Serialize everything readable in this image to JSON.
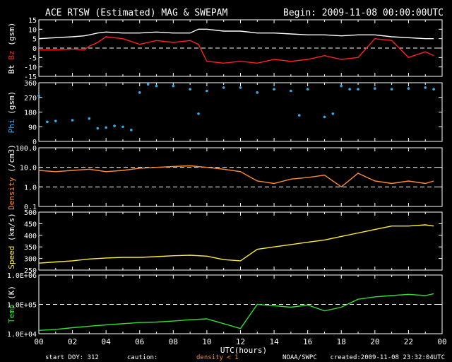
{
  "header": {
    "title": "ACE RTSW (Estimated) MAG & SWEPAM",
    "begin": "Begin: 2009-11-08 00:00:00UTC"
  },
  "footer": {
    "start_doy": "start DOY: 312",
    "caution": "caution:",
    "density_note": "density < 1",
    "source": "NOAA/SWPC",
    "created": "created:2009-11-08 23:32:04UTC"
  },
  "colors": {
    "bt": "#ffffff",
    "bz": "#ff2020",
    "phi": "#33aaee",
    "density": "#ff8c33",
    "speed": "#ffee33",
    "temp": "#33dd33",
    "density_note": "#ff8c33"
  },
  "chart_data": [
    {
      "type": "line",
      "ylabel_parts": [
        "Bt",
        "Bz",
        "(gsm)"
      ],
      "ylim": [
        -15,
        15
      ],
      "yticks": [
        "15",
        "10",
        "5",
        "0",
        "-5",
        "-10",
        "-15"
      ],
      "yticks_vals": [
        15,
        10,
        5,
        0,
        -5,
        -10,
        -15
      ],
      "dashed": [
        0
      ],
      "series": [
        {
          "key": "bt",
          "color": "#ffffff",
          "x": [
            0,
            1,
            2,
            2.7,
            3,
            3.5,
            4,
            5,
            6,
            7,
            8,
            9,
            9.5,
            10,
            11,
            12,
            13,
            14,
            15,
            16,
            17,
            18,
            19,
            20,
            21,
            22,
            23,
            23.5
          ],
          "values": [
            5,
            5.5,
            6,
            6.5,
            7,
            8,
            8.5,
            8,
            8,
            8.5,
            8,
            8,
            10,
            10,
            9,
            9,
            8,
            8,
            7.5,
            7,
            7,
            6.5,
            7,
            7,
            6,
            5.5,
            5,
            5
          ]
        },
        {
          "key": "bz",
          "color": "#ff2020",
          "x": [
            0,
            1,
            2,
            2.7,
            3,
            3.5,
            4,
            5,
            6,
            7,
            8,
            9,
            9.5,
            10,
            11,
            12,
            13,
            14,
            15,
            16,
            17,
            18,
            19,
            20,
            21,
            22,
            23,
            23.5
          ],
          "values": [
            -1,
            -1,
            -0.5,
            -1,
            1,
            3,
            6,
            5,
            2,
            4,
            3,
            4,
            2,
            -7,
            -8,
            -7,
            -8,
            -6,
            -7,
            -6,
            -4,
            -6,
            -5,
            5,
            4,
            -5,
            -2,
            -4
          ]
        }
      ]
    },
    {
      "type": "scatter",
      "ylabel_parts": [
        "Phi",
        "(gsm)"
      ],
      "ylim": [
        0,
        360
      ],
      "yticks": [
        "360",
        "270",
        "180",
        "90",
        "0"
      ],
      "yticks_vals": [
        360,
        270,
        180,
        90,
        0
      ],
      "dashed": [],
      "series": [
        {
          "key": "phi",
          "color": "#33aaee",
          "x": [
            0,
            0.5,
            1,
            2,
            3,
            3.5,
            4,
            4.5,
            5,
            5.5,
            6,
            6.5,
            7,
            8,
            9,
            9.5,
            10,
            11,
            12,
            13,
            14,
            15,
            15.5,
            16,
            17,
            17.5,
            18,
            18.5,
            19,
            20,
            21,
            22,
            23,
            23.5
          ],
          "values": [
            280,
            120,
            125,
            130,
            140,
            80,
            85,
            95,
            90,
            70,
            300,
            350,
            340,
            340,
            320,
            170,
            310,
            330,
            330,
            300,
            320,
            310,
            160,
            320,
            150,
            170,
            340,
            320,
            320,
            325,
            320,
            325,
            330,
            320
          ]
        }
      ]
    },
    {
      "type": "line",
      "ylabel_parts": [
        "Density",
        "(/cm3)"
      ],
      "yscale": "log",
      "ylim": [
        0.1,
        100
      ],
      "yticks": [
        "100.0",
        "10.0",
        "1.0",
        "0.1"
      ],
      "yticks_vals": [
        100,
        10,
        1,
        0.1
      ],
      "dashed": [
        10,
        1
      ],
      "series": [
        {
          "key": "density",
          "color": "#ff8c33",
          "x": [
            0,
            1,
            2,
            3,
            4,
            5,
            6,
            7,
            8,
            9,
            10,
            11,
            12,
            13,
            14,
            15,
            16,
            17,
            18,
            19,
            20,
            21,
            22,
            23,
            23.5
          ],
          "values": [
            7,
            6,
            7,
            8,
            6,
            7,
            9,
            10,
            11,
            12,
            10,
            8,
            6,
            2,
            1.5,
            2.5,
            3,
            4,
            1,
            5,
            2,
            1.5,
            2,
            1.5,
            2
          ]
        }
      ]
    },
    {
      "type": "line",
      "ylabel_parts": [
        "Speed",
        "(km/s)"
      ],
      "ylim": [
        250,
        500
      ],
      "yticks": [
        "500",
        "450",
        "400",
        "350",
        "300",
        "250"
      ],
      "yticks_vals": [
        500,
        450,
        400,
        350,
        300,
        250
      ],
      "dashed": [],
      "series": [
        {
          "key": "speed",
          "color": "#ffee33",
          "x": [
            0,
            1,
            2,
            3,
            4,
            5,
            6,
            7,
            8,
            9,
            10,
            11,
            12,
            13,
            14,
            15,
            16,
            17,
            18,
            19,
            20,
            21,
            22,
            23,
            23.5
          ],
          "values": [
            280,
            285,
            290,
            298,
            302,
            305,
            305,
            308,
            312,
            314,
            310,
            295,
            290,
            340,
            350,
            360,
            370,
            380,
            395,
            410,
            425,
            440,
            440,
            445,
            440
          ]
        }
      ]
    },
    {
      "type": "line",
      "ylabel_parts": [
        "Temp",
        "(K)"
      ],
      "yscale": "log",
      "ylim": [
        10000,
        1000000
      ],
      "yticks": [
        "1.0E+06",
        "1.0E+05",
        "1.0E+04"
      ],
      "yticks_vals": [
        1000000,
        100000,
        10000
      ],
      "dashed": [
        100000
      ],
      "series": [
        {
          "key": "temp",
          "color": "#33dd33",
          "x": [
            0,
            1,
            2,
            3,
            4,
            5,
            6,
            7,
            8,
            9,
            10,
            11,
            12,
            13,
            14,
            15,
            16,
            17,
            18,
            19,
            20,
            21,
            22,
            23,
            23.5
          ],
          "values": [
            13000,
            14000,
            16000,
            18000,
            20000,
            22000,
            24000,
            25000,
            27000,
            30000,
            32000,
            22000,
            15000,
            100000,
            90000,
            80000,
            95000,
            60000,
            80000,
            150000,
            180000,
            200000,
            220000,
            200000,
            230000
          ]
        }
      ]
    }
  ],
  "xaxis": {
    "label": "UTC(hours)",
    "ticks": [
      "00",
      "02",
      "04",
      "06",
      "08",
      "10",
      "12",
      "14",
      "16",
      "18",
      "20",
      "22",
      "00"
    ],
    "range": [
      0,
      24
    ]
  }
}
